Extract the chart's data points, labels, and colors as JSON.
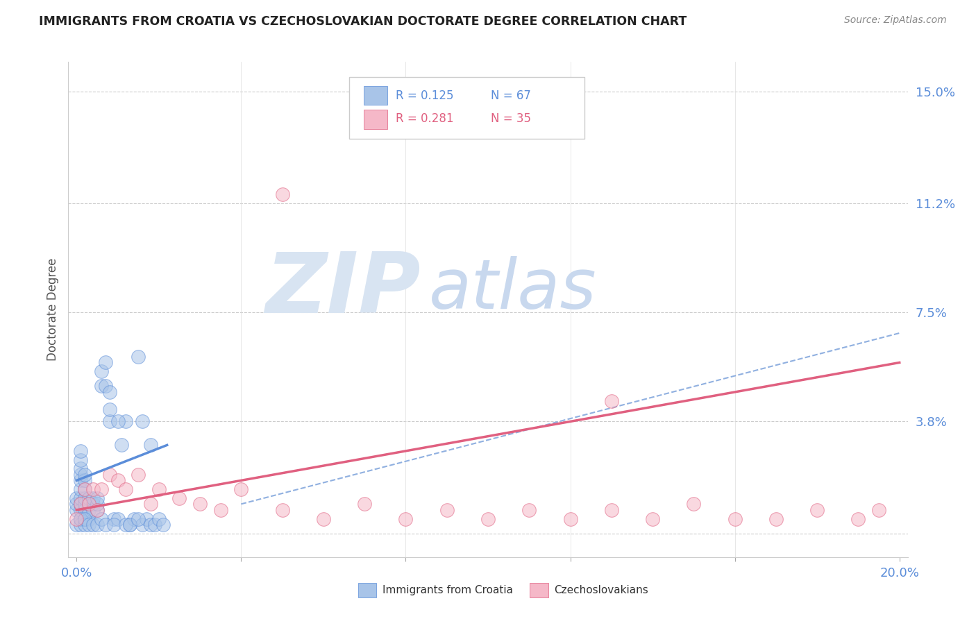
{
  "title": "IMMIGRANTS FROM CROATIA VS CZECHOSLOVAKIAN DOCTORATE DEGREE CORRELATION CHART",
  "source_text": "Source: ZipAtlas.com",
  "ylabel": "Doctorate Degree",
  "xlim": [
    -0.002,
    0.202
  ],
  "ylim": [
    -0.008,
    0.16
  ],
  "ytick_positions": [
    0.15,
    0.112,
    0.075,
    0.038
  ],
  "yticklabels": [
    "15.0%",
    "11.2%",
    "7.5%",
    "3.8%"
  ],
  "grid_yticks": [
    0.15,
    0.112,
    0.075,
    0.038,
    0.0
  ],
  "legend_r1": "R = 0.125",
  "legend_n1": "N = 67",
  "legend_r2": "R = 0.281",
  "legend_n2": "N = 35",
  "color_blue": "#a8c4e8",
  "color_pink": "#f5b8c8",
  "color_blue_dark": "#5b8dd9",
  "color_pink_dark": "#e06080",
  "color_dashed": "#90b0e0",
  "watermark_zip": "ZIP",
  "watermark_atlas": "atlas",
  "watermark_color_zip": "#d8e4f2",
  "watermark_color_atlas": "#c8d8ee",
  "title_color": "#222222",
  "legend_label1": "Immigrants from Croatia",
  "legend_label2": "Czechoslovakians",
  "blue_x": [
    0.0,
    0.0,
    0.0,
    0.001,
    0.001,
    0.001,
    0.001,
    0.001,
    0.001,
    0.001,
    0.001,
    0.001,
    0.001,
    0.002,
    0.002,
    0.002,
    0.002,
    0.002,
    0.002,
    0.002,
    0.003,
    0.003,
    0.003,
    0.003,
    0.004,
    0.004,
    0.004,
    0.005,
    0.005,
    0.005,
    0.006,
    0.006,
    0.007,
    0.007,
    0.008,
    0.008,
    0.009,
    0.01,
    0.011,
    0.012,
    0.013,
    0.014,
    0.015,
    0.016,
    0.017,
    0.018,
    0.0,
    0.001,
    0.001,
    0.002,
    0.002,
    0.003,
    0.004,
    0.005,
    0.006,
    0.007,
    0.008,
    0.009,
    0.01,
    0.012,
    0.013,
    0.015,
    0.016,
    0.018,
    0.019,
    0.02,
    0.021
  ],
  "blue_y": [
    0.008,
    0.01,
    0.012,
    0.005,
    0.008,
    0.01,
    0.012,
    0.015,
    0.018,
    0.02,
    0.022,
    0.025,
    0.028,
    0.005,
    0.008,
    0.01,
    0.012,
    0.015,
    0.018,
    0.02,
    0.005,
    0.008,
    0.01,
    0.012,
    0.008,
    0.01,
    0.012,
    0.008,
    0.01,
    0.012,
    0.05,
    0.055,
    0.05,
    0.058,
    0.038,
    0.042,
    0.005,
    0.005,
    0.03,
    0.038,
    0.003,
    0.005,
    0.06,
    0.003,
    0.005,
    0.03,
    0.003,
    0.003,
    0.005,
    0.003,
    0.005,
    0.003,
    0.003,
    0.003,
    0.005,
    0.003,
    0.048,
    0.003,
    0.038,
    0.003,
    0.003,
    0.005,
    0.038,
    0.003,
    0.003,
    0.005,
    0.003
  ],
  "pink_x": [
    0.0,
    0.001,
    0.002,
    0.003,
    0.004,
    0.005,
    0.006,
    0.008,
    0.01,
    0.012,
    0.015,
    0.018,
    0.02,
    0.025,
    0.03,
    0.035,
    0.04,
    0.05,
    0.06,
    0.07,
    0.08,
    0.09,
    0.1,
    0.11,
    0.12,
    0.13,
    0.14,
    0.15,
    0.16,
    0.17,
    0.18,
    0.19,
    0.195,
    0.05,
    0.13
  ],
  "pink_y": [
    0.005,
    0.01,
    0.015,
    0.01,
    0.015,
    0.008,
    0.015,
    0.02,
    0.018,
    0.015,
    0.02,
    0.01,
    0.015,
    0.012,
    0.01,
    0.008,
    0.015,
    0.008,
    0.005,
    0.01,
    0.005,
    0.008,
    0.005,
    0.008,
    0.005,
    0.008,
    0.005,
    0.01,
    0.005,
    0.005,
    0.008,
    0.005,
    0.008,
    0.115,
    0.045
  ],
  "blue_line_x": [
    0.0,
    0.022
  ],
  "blue_line_y": [
    0.018,
    0.03
  ],
  "pink_line_x": [
    0.0,
    0.2
  ],
  "pink_line_y": [
    0.008,
    0.058
  ],
  "dash_line_x": [
    0.04,
    0.2
  ],
  "dash_line_y": [
    0.01,
    0.068
  ]
}
